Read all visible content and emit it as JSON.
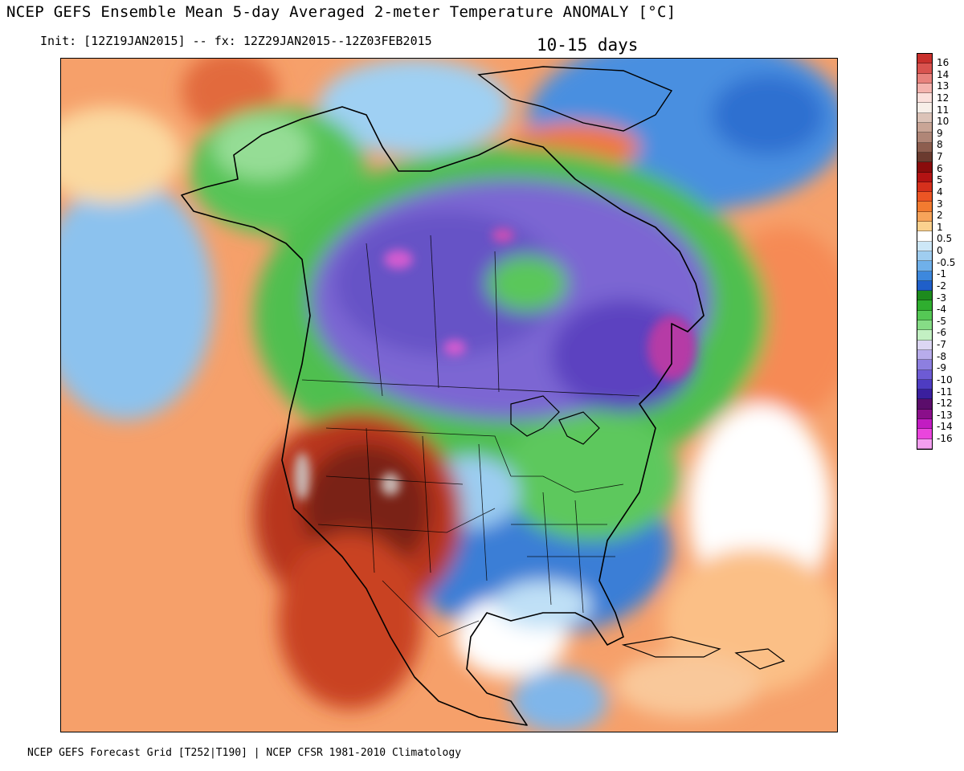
{
  "header": {
    "title": "NCEP GEFS Ensemble Mean 5-day Averaged 2-meter Temperature ANOMALY [°C]",
    "init_line": "Init: [12Z19JAN2015] -- fx: 12Z29JAN2015--12Z03FEB2015",
    "period": "10-15 days"
  },
  "footer": {
    "source": "NCEP GEFS Forecast Grid [T252|T190] | NCEP CFSR 1981-2010 Climatology"
  },
  "colors": {
    "ocean_warm": "#f59a66",
    "ocean_cool": "#7fb8e8",
    "west_hot": "#b8331c",
    "west_hottest": "#6e1e12",
    "canada_cold": "#6f55c9",
    "canada_coldest": "#c94fb6",
    "green_band": "#52c252",
    "east_cool": "#3d7fd6",
    "near_zero": "#ffffff"
  },
  "legend": {
    "labels": [
      "16",
      "14",
      "13",
      "12",
      "11",
      "10",
      "9",
      "8",
      "7",
      "6",
      "5",
      "4",
      "3",
      "2",
      "1",
      "0.5",
      "0",
      "-0.5",
      "-1",
      "-2",
      "-3",
      "-4",
      "-5",
      "-6",
      "-7",
      "-8",
      "-9",
      "-10",
      "-11",
      "-12",
      "-13",
      "-14",
      "-16"
    ],
    "colors": [
      "#c9302c",
      "#d9534f",
      "#e8827d",
      "#f4b3ae",
      "#fbe0dc",
      "#f7efe9",
      "#dcc3b8",
      "#c9a596",
      "#b08677",
      "#8d5e4f",
      "#6b3b2f",
      "#8a0c0c",
      "#b31313",
      "#d5301c",
      "#ec5524",
      "#f27b30",
      "#f7a45a",
      "#fbd18e",
      "#ffffff",
      "#cde7f7",
      "#9fcdf0",
      "#6fb0ea",
      "#3d88dd",
      "#1f5fc9",
      "#1d8a1d",
      "#2fae2f",
      "#55c855",
      "#86dc86",
      "#c3f0c3",
      "#dcd6f3",
      "#b8aceb",
      "#8d7fe0",
      "#6d5bd4",
      "#4e3cc2",
      "#3a1f9e",
      "#5b0d6b",
      "#8a0f8a",
      "#c21cc2",
      "#ea45dd",
      "#f49ff0"
    ]
  }
}
